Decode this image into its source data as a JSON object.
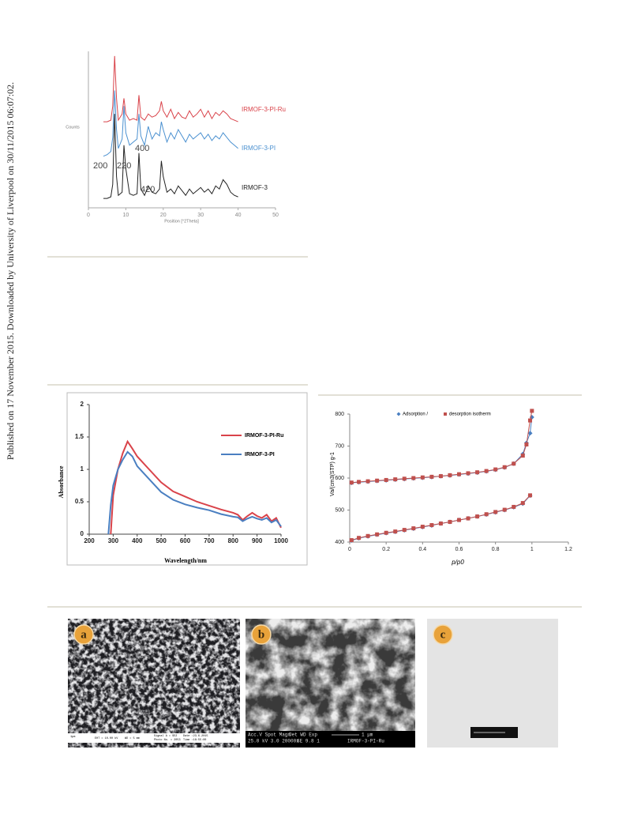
{
  "sidebar_note": "Published on 17 November 2015. Downloaded by University of Liverpool on 30/11/2015 06:07:02.",
  "chart_data": [
    {
      "type": "line",
      "xlabel": "Position [°2Theta]",
      "ylabel": "Counts",
      "xlim": [
        0,
        50
      ],
      "xticks": [
        0,
        10,
        20,
        30,
        40,
        50
      ],
      "ylim": [
        0,
        100
      ],
      "annotations": [
        "200",
        "220",
        "400",
        "420"
      ],
      "x": [
        4,
        5,
        6,
        6.5,
        7,
        7.5,
        8,
        9,
        9.5,
        10,
        11,
        12,
        13,
        13.5,
        14,
        15,
        16,
        17,
        18,
        19,
        19.5,
        20,
        21,
        22,
        23,
        24,
        25,
        26,
        27,
        28,
        29,
        30,
        31,
        32,
        33,
        34,
        35,
        36,
        37,
        38,
        39,
        40
      ],
      "series": [
        {
          "name": "IRMOF-3-PI-Ru",
          "color": "#d9434a",
          "values": [
            55,
            55,
            56,
            65,
            97,
            70,
            56,
            60,
            70,
            60,
            56,
            57,
            56,
            72,
            58,
            56,
            60,
            58,
            59,
            62,
            68,
            62,
            58,
            63,
            57,
            61,
            58,
            57,
            62,
            58,
            60,
            63,
            58,
            62,
            57,
            61,
            59,
            62,
            60,
            57,
            56,
            55
          ]
        },
        {
          "name": "IRMOF-3-PI",
          "color": "#4a90d0",
          "values": [
            33,
            34,
            36,
            45,
            75,
            50,
            38,
            44,
            65,
            48,
            40,
            42,
            44,
            60,
            46,
            40,
            52,
            44,
            48,
            46,
            55,
            50,
            42,
            48,
            44,
            50,
            46,
            42,
            47,
            44,
            46,
            48,
            44,
            47,
            43,
            46,
            44,
            48,
            45,
            42,
            40,
            38
          ]
        },
        {
          "name": "IRMOF-3",
          "color": "#222222",
          "values": [
            6,
            6,
            7,
            15,
            60,
            20,
            8,
            10,
            40,
            25,
            9,
            8,
            9,
            35,
            12,
            8,
            14,
            10,
            9,
            12,
            30,
            20,
            10,
            12,
            9,
            14,
            11,
            8,
            12,
            9,
            11,
            13,
            10,
            12,
            9,
            14,
            12,
            18,
            15,
            10,
            8,
            7
          ]
        }
      ]
    },
    {
      "type": "line",
      "xlabel": "Wavelength/nm",
      "ylabel": "Absorbance",
      "xlim": [
        200,
        1000
      ],
      "xticks": [
        200,
        300,
        400,
        500,
        600,
        700,
        800,
        900,
        1000
      ],
      "ylim": [
        0,
        2
      ],
      "yticks": [
        0,
        0.5,
        1,
        1.5,
        2
      ],
      "x": [
        280,
        290,
        300,
        320,
        340,
        360,
        380,
        400,
        450,
        500,
        550,
        600,
        650,
        700,
        750,
        800,
        820,
        840,
        860,
        880,
        900,
        920,
        940,
        960,
        980,
        1000
      ],
      "series": [
        {
          "name": "IRMOF-3-PI-Ru",
          "color": "#d9434a",
          "values": [
            null,
            0,
            0.6,
            1.0,
            1.25,
            1.43,
            1.32,
            1.2,
            1.0,
            0.8,
            0.66,
            0.58,
            0.5,
            0.44,
            0.38,
            0.33,
            0.3,
            0.22,
            0.28,
            0.33,
            0.28,
            0.25,
            0.3,
            0.2,
            0.25,
            0.1
          ]
        },
        {
          "name": "IRMOF-3-PI",
          "color": "#4a7fc1",
          "values": [
            0,
            0.45,
            0.75,
            1.0,
            1.15,
            1.27,
            1.2,
            1.05,
            0.85,
            0.65,
            0.53,
            0.46,
            0.41,
            0.37,
            0.31,
            0.27,
            0.26,
            0.2,
            0.24,
            0.27,
            0.24,
            0.22,
            0.25,
            0.18,
            0.22,
            0.12
          ]
        }
      ]
    },
    {
      "type": "line",
      "markers": true,
      "xlabel": "p/p0",
      "ylabel": "Va/(cm3(STP) g-1",
      "xlim": [
        0,
        1.2
      ],
      "xticks": [
        0,
        0.2,
        0.4,
        0.6,
        0.8,
        1,
        1.2
      ],
      "ylim": [
        400,
        800
      ],
      "yticks": [
        400,
        500,
        600,
        700,
        800
      ],
      "x": [
        0.01,
        0.05,
        0.1,
        0.15,
        0.2,
        0.25,
        0.3,
        0.35,
        0.4,
        0.45,
        0.5,
        0.55,
        0.6,
        0.65,
        0.7,
        0.75,
        0.8,
        0.85,
        0.9,
        0.95,
        0.99,
        null,
        0.01,
        0.05,
        0.1,
        0.15,
        0.2,
        0.25,
        0.3,
        0.35,
        0.4,
        0.45,
        0.5,
        0.55,
        0.6,
        0.65,
        0.7,
        0.75,
        0.8,
        0.85,
        0.9,
        0.95,
        0.97,
        0.99,
        1
      ],
      "series": [
        {
          "name": "Adsorption /",
          "color": "#4a7fc1",
          "marker": "diamond",
          "values": [
            405,
            412,
            418,
            423,
            428,
            432,
            437,
            442,
            447,
            452,
            458,
            463,
            469,
            474,
            480,
            486,
            493,
            500,
            509,
            520,
            545,
            null,
            585,
            587,
            589,
            591,
            593,
            595,
            597,
            599,
            601,
            603,
            606,
            608,
            611,
            614,
            617,
            621,
            626,
            633,
            645,
            675,
            710,
            740,
            790
          ]
        },
        {
          "name": "desorption isotherm",
          "color": "#c0504d",
          "marker": "square",
          "values": [
            406,
            413,
            419,
            424,
            429,
            433,
            438,
            443,
            448,
            453,
            458,
            463,
            469,
            474,
            480,
            487,
            494,
            501,
            510,
            522,
            546,
            null,
            586,
            588,
            590,
            592,
            594,
            596,
            598,
            600,
            602,
            604,
            606,
            609,
            612,
            615,
            618,
            622,
            627,
            634,
            645,
            670,
            705,
            780,
            810
          ]
        }
      ]
    }
  ],
  "images": [
    {
      "label": "a",
      "info": [
        "1μm",
        "EHT = 10.00 kV",
        "WD = 5 mm",
        "Signal A = SE2",
        "Photo No. = 2053",
        "Date :23.6.2015",
        "Time :16:55:00"
      ]
    },
    {
      "label": "b",
      "info": [
        "Acc.V Spot Magn",
        "Det WD Exp",
        "25.0 kV 3.0 20000x",
        "SE 9.8 1",
        "1 μm",
        "IRMOF-3-PI-Ru"
      ]
    },
    {
      "label": "c"
    }
  ]
}
